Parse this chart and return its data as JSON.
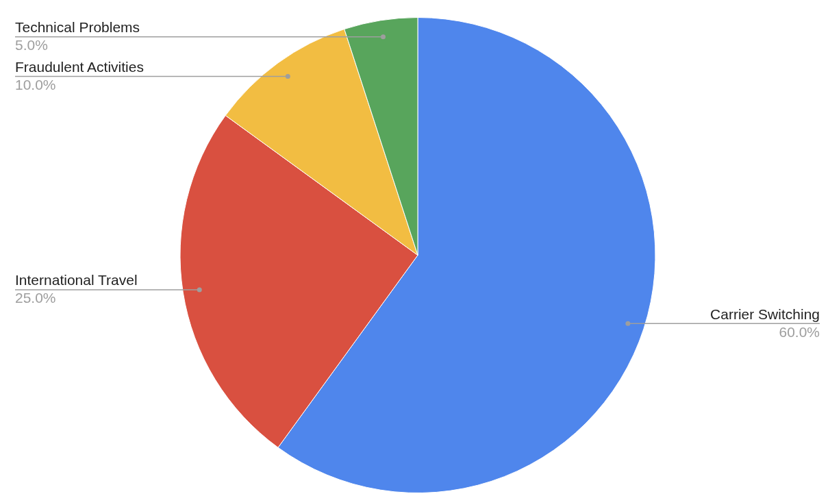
{
  "chart_data": {
    "type": "pie",
    "categories": [
      "Carrier Switching",
      "International Travel",
      "Fraudulent Activities",
      "Technical Problems"
    ],
    "values": [
      60,
      25,
      10,
      5
    ],
    "colors": [
      "#4f86ec",
      "#d95040",
      "#f2bd42",
      "#58a55c"
    ],
    "value_labels": [
      "60.0%",
      "25.0%",
      "10.0%",
      "5.0%"
    ],
    "legend": false
  }
}
